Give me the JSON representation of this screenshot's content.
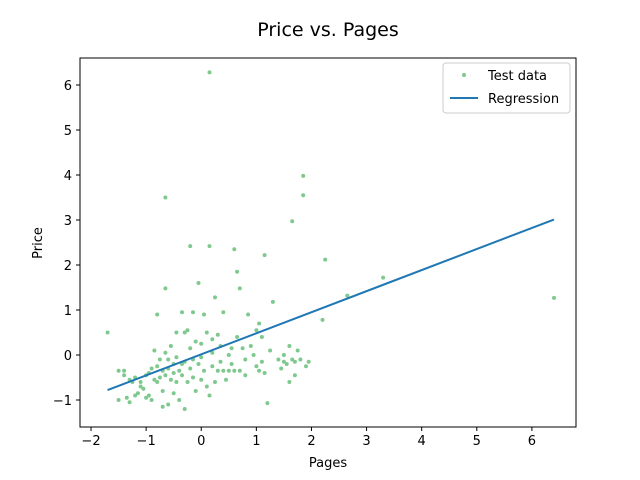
{
  "chart_data": {
    "type": "scatter",
    "title": "Price vs. Pages",
    "xlabel": "Pages",
    "ylabel": "Price",
    "xlim": [
      -2.2,
      6.8
    ],
    "ylim": [
      -1.6,
      6.6
    ],
    "xticks": [
      -2,
      -1,
      0,
      1,
      2,
      3,
      4,
      5,
      6
    ],
    "yticks": [
      -1,
      0,
      1,
      2,
      3,
      4,
      5,
      6
    ],
    "grid": false,
    "legend_position": "top-right",
    "series": [
      {
        "name": "Test data",
        "kind": "scatter",
        "color": "#7fc98f",
        "points": [
          [
            -1.7,
            0.5
          ],
          [
            -1.5,
            -1.0
          ],
          [
            -1.5,
            -0.35
          ],
          [
            -1.4,
            -0.45
          ],
          [
            -1.4,
            -0.35
          ],
          [
            -1.35,
            -0.95
          ],
          [
            -1.3,
            -1.05
          ],
          [
            -1.3,
            -0.55
          ],
          [
            -1.25,
            -0.6
          ],
          [
            -1.2,
            -0.5
          ],
          [
            -1.2,
            -0.9
          ],
          [
            -1.15,
            -0.85
          ],
          [
            -1.1,
            -0.7
          ],
          [
            -1.1,
            -0.6
          ],
          [
            -1.05,
            -0.75
          ],
          [
            -1.0,
            -0.45
          ],
          [
            -1.0,
            -0.95
          ],
          [
            -0.95,
            -0.9
          ],
          [
            -0.95,
            -0.4
          ],
          [
            -0.9,
            -1.0
          ],
          [
            -0.9,
            -0.3
          ],
          [
            -0.85,
            -0.55
          ],
          [
            -0.85,
            0.1
          ],
          [
            -0.8,
            -0.25
          ],
          [
            -0.8,
            -0.6
          ],
          [
            -0.8,
            0.9
          ],
          [
            -0.75,
            -0.1
          ],
          [
            -0.75,
            -0.5
          ],
          [
            -0.7,
            -0.35
          ],
          [
            -0.7,
            -0.8
          ],
          [
            -0.7,
            -1.15
          ],
          [
            -0.65,
            0.05
          ],
          [
            -0.65,
            -0.45
          ],
          [
            -0.65,
            1.48
          ],
          [
            -0.65,
            3.5
          ],
          [
            -0.6,
            -0.1
          ],
          [
            -0.6,
            -0.3
          ],
          [
            -0.6,
            -1.1
          ],
          [
            -0.55,
            -0.55
          ],
          [
            -0.55,
            0.2
          ],
          [
            -0.5,
            -0.4
          ],
          [
            -0.5,
            -0.2
          ],
          [
            -0.5,
            -0.85
          ],
          [
            -0.45,
            -0.05
          ],
          [
            -0.45,
            -0.6
          ],
          [
            -0.45,
            0.5
          ],
          [
            -0.4,
            -0.35
          ],
          [
            -0.4,
            -1.0
          ],
          [
            -0.35,
            0.95
          ],
          [
            -0.35,
            -0.2
          ],
          [
            -0.35,
            -0.45
          ],
          [
            -0.3,
            0.5
          ],
          [
            -0.3,
            -0.15
          ],
          [
            -0.3,
            -1.2
          ],
          [
            -0.25,
            -0.6
          ],
          [
            -0.25,
            0.55
          ],
          [
            -0.2,
            0.15
          ],
          [
            -0.2,
            -0.3
          ],
          [
            -0.2,
            2.42
          ],
          [
            -0.15,
            -0.1
          ],
          [
            -0.15,
            -0.5
          ],
          [
            -0.15,
            0.95
          ],
          [
            -0.1,
            -0.8
          ],
          [
            -0.1,
            0.3
          ],
          [
            -0.05,
            -0.2
          ],
          [
            -0.05,
            1.6
          ],
          [
            0.0,
            -0.55
          ],
          [
            0.0,
            -0.05
          ],
          [
            0.0,
            0.25
          ],
          [
            0.05,
            -0.35
          ],
          [
            0.05,
            0.9
          ],
          [
            0.1,
            0.5
          ],
          [
            0.1,
            -0.7
          ],
          [
            0.15,
            2.42
          ],
          [
            0.15,
            6.28
          ],
          [
            0.15,
            -0.9
          ],
          [
            0.2,
            -0.25
          ],
          [
            0.2,
            0.05
          ],
          [
            0.2,
            0.35
          ],
          [
            0.25,
            1.28
          ],
          [
            0.25,
            -0.6
          ],
          [
            0.3,
            -0.35
          ],
          [
            0.3,
            0.45
          ],
          [
            0.35,
            -0.15
          ],
          [
            0.35,
            0.2
          ],
          [
            0.4,
            -0.35
          ],
          [
            0.4,
            0.95
          ],
          [
            0.45,
            -0.55
          ],
          [
            0.5,
            -0.35
          ],
          [
            0.5,
            0.0
          ],
          [
            0.55,
            0.15
          ],
          [
            0.55,
            -0.2
          ],
          [
            0.6,
            2.35
          ],
          [
            0.6,
            -0.35
          ],
          [
            0.65,
            1.85
          ],
          [
            0.65,
            0.4
          ],
          [
            0.7,
            -0.35
          ],
          [
            0.7,
            1.48
          ],
          [
            0.75,
            0.15
          ],
          [
            0.8,
            -0.1
          ],
          [
            0.8,
            -0.45
          ],
          [
            0.85,
            0.9
          ],
          [
            0.9,
            0.2
          ],
          [
            0.95,
            0.0
          ],
          [
            1.0,
            -0.25
          ],
          [
            1.0,
            0.55
          ],
          [
            1.05,
            -0.35
          ],
          [
            1.05,
            0.7
          ],
          [
            1.1,
            -0.15
          ],
          [
            1.1,
            0.4
          ],
          [
            1.15,
            -0.4
          ],
          [
            1.15,
            2.22
          ],
          [
            1.2,
            -1.07
          ],
          [
            1.25,
            0.1
          ],
          [
            1.3,
            1.18
          ],
          [
            1.4,
            -0.1
          ],
          [
            1.45,
            -0.3
          ],
          [
            1.5,
            0.0
          ],
          [
            1.5,
            -0.15
          ],
          [
            1.55,
            -0.2
          ],
          [
            1.6,
            -0.6
          ],
          [
            1.6,
            0.2
          ],
          [
            1.65,
            2.97
          ],
          [
            1.65,
            -0.1
          ],
          [
            1.7,
            -0.15
          ],
          [
            1.7,
            -0.45
          ],
          [
            1.75,
            0.1
          ],
          [
            1.8,
            -0.1
          ],
          [
            1.85,
            3.98
          ],
          [
            1.85,
            3.55
          ],
          [
            1.9,
            -0.25
          ],
          [
            1.95,
            -0.15
          ],
          [
            2.2,
            0.78
          ],
          [
            2.25,
            2.12
          ],
          [
            2.65,
            1.32
          ],
          [
            3.3,
            1.72
          ],
          [
            6.4,
            1.27
          ]
        ]
      },
      {
        "name": "Regression",
        "kind": "line",
        "color": "#1f77b4",
        "x": [
          -1.7,
          6.4
        ],
        "y": [
          -0.78,
          3.01
        ]
      }
    ]
  }
}
